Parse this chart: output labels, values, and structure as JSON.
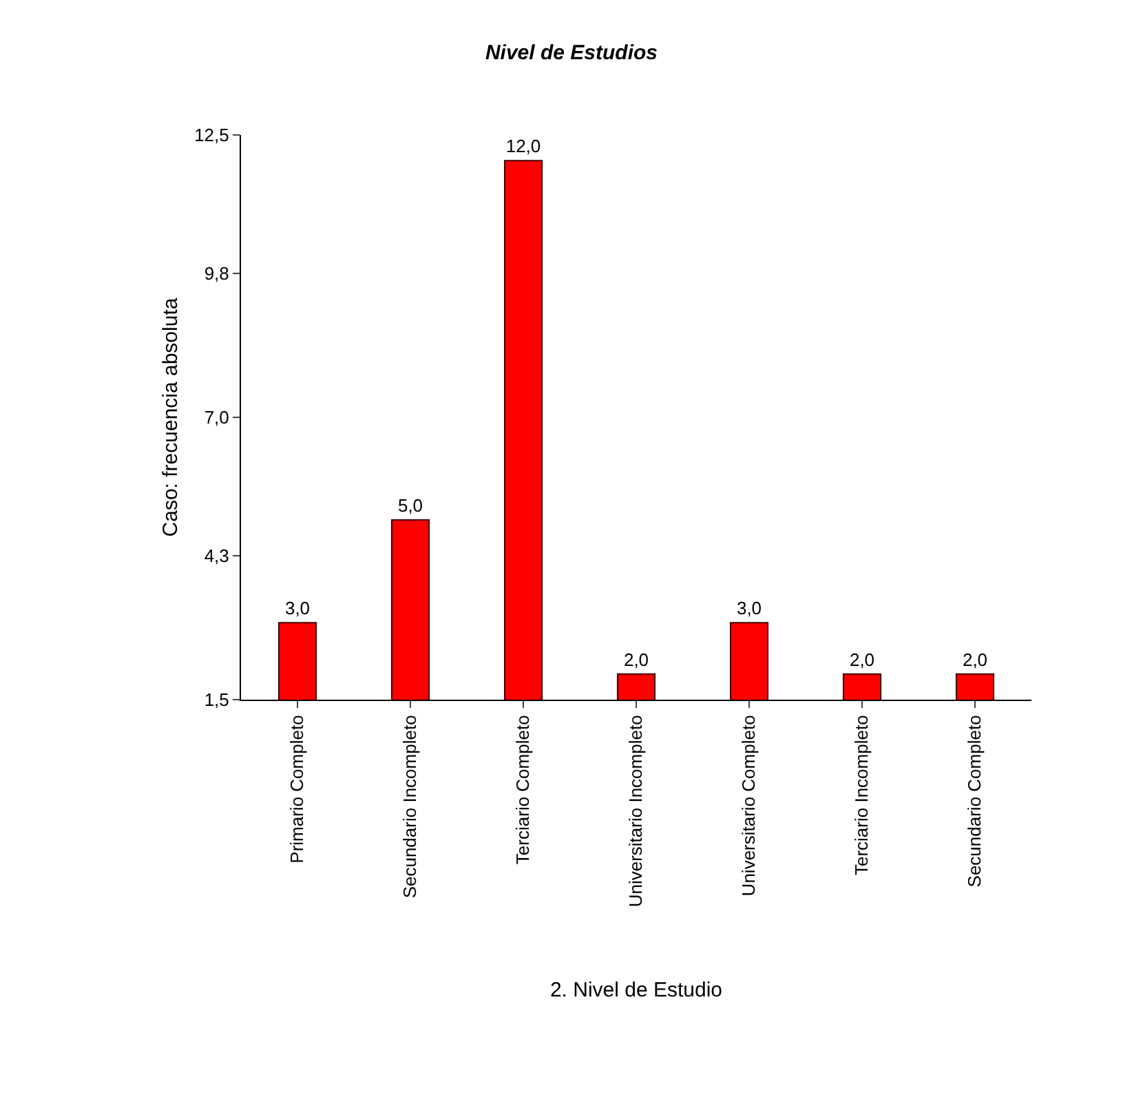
{
  "chart_data": {
    "type": "bar",
    "title": "Nivel de Estudios",
    "xlabel": "2. Nivel de Estudio",
    "ylabel": "Caso: frecuencia absoluta",
    "categories": [
      "Primario Completo",
      "Secundario Incompleto",
      "Terciario Completo",
      "Universitario Incompleto",
      "Universitario Completo",
      "Terciario Incompleto",
      "Secundario Completo"
    ],
    "values": [
      3,
      5,
      12,
      2,
      3,
      2,
      2
    ],
    "value_labels": [
      "3,0",
      "5,0",
      "12,0",
      "2,0",
      "3,0",
      "2,0",
      "2,0"
    ],
    "color": "#ff0000",
    "ylim": [
      1.5,
      12.5
    ],
    "yticks": [
      {
        "value": 1.5,
        "label": "1,5"
      },
      {
        "value": 4.3,
        "label": "4,3"
      },
      {
        "value": 7.0,
        "label": "7,0"
      },
      {
        "value": 9.8,
        "label": "9,8"
      },
      {
        "value": 12.5,
        "label": "12,5"
      }
    ],
    "grid": false
  }
}
